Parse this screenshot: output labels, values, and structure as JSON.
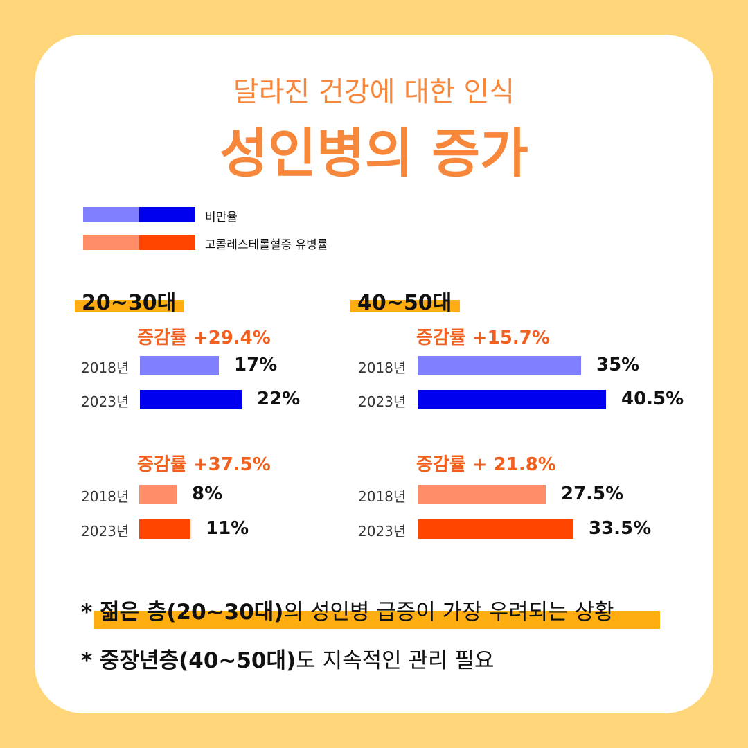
{
  "header": {
    "subtitle": "달라진 건강에 대한 인식",
    "title": "성인병의 증가"
  },
  "colors": {
    "page_bg": "#FFD67A",
    "accent_orange": "#F7873A",
    "obesity_2018": "#7F7FFF",
    "obesity_2023": "#0000EE",
    "chol_2018": "#FF8E68",
    "chol_2023": "#FF4500",
    "highlight": "#FFAE12"
  },
  "legend": [
    {
      "label": "비만율"
    },
    {
      "label": "고콜레스테롤혈증 유병률"
    }
  ],
  "groups": {
    "g1": {
      "title": "20~30대"
    },
    "g2": {
      "title": "40~50대"
    }
  },
  "notes": {
    "n1_bold": "* 젊은 층(20~30대)",
    "n1_rest": "의 성인병 급증이 가장 우려되는 상황",
    "n2_bold": "* 중장년층(40~50대)",
    "n2_rest": "도 지속적인 관리 필요"
  },
  "chart_data": [
    {
      "type": "bar",
      "group": "20~30대",
      "series_label": "비만율",
      "rate_label": "증감률  +29.4%",
      "categories": [
        "2018년",
        "2023년"
      ],
      "values": [
        17,
        22
      ],
      "value_labels": [
        "17%",
        "22%"
      ]
    },
    {
      "type": "bar",
      "group": "20~30대",
      "series_label": "고콜레스테롤혈증 유병률",
      "rate_label": "증감률  +37.5%",
      "categories": [
        "2018년",
        "2023년"
      ],
      "values": [
        8,
        11
      ],
      "value_labels": [
        "8%",
        "11%"
      ]
    },
    {
      "type": "bar",
      "group": "40~50대",
      "series_label": "비만율",
      "rate_label": "증감률  +15.7%",
      "categories": [
        "2018년",
        "2023년"
      ],
      "values": [
        35,
        40.5
      ],
      "value_labels": [
        "35%",
        "40.5%"
      ]
    },
    {
      "type": "bar",
      "group": "40~50대",
      "series_label": "고콜레스테롤혈증 유병률",
      "rate_label": "증감률 + 21.8%",
      "categories": [
        "2018년",
        "2023년"
      ],
      "values": [
        27.5,
        33.5
      ],
      "value_labels": [
        "27.5%",
        "33.5%"
      ]
    }
  ]
}
